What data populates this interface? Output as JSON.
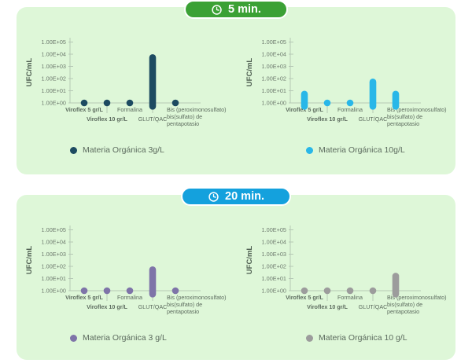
{
  "panels": [
    {
      "badge": {
        "label": "5 min.",
        "color": "#3ba135",
        "icon": "clock-icon"
      }
    },
    {
      "badge": {
        "label": "20 min.",
        "color": "#14a1dd",
        "icon": "clock-icon"
      }
    }
  ],
  "style": {
    "panel_background": "#def7d8",
    "axis_color": "#b5c8b5",
    "tick_text_color": "#6d7a6e",
    "category_text_color": "#5c6b5e",
    "ylabel_color": "#4e5e51"
  },
  "chart_data": [
    {
      "type": "bar",
      "panel": "5 min.",
      "series": "Materia Orgánica 3g/L",
      "color": "#1d4b61",
      "ylabel": "UFC/mL",
      "yscale": "log10",
      "ylim": [
        1,
        100000
      ],
      "ytick_labels": [
        "1.00E+00",
        "1.00E+01",
        "1.00E+02",
        "1.00E+03",
        "1.00E+04",
        "1.00E+05"
      ],
      "categories": [
        "Viroflex 5 gr/L",
        "Viroflex 10 gr/L",
        "Formalina",
        "GLUT/QAC",
        "Bis (peroximonosulfato) bis(sulfato) de pentapotasio"
      ],
      "categories_display": [
        [
          "Viroflex 5 gr/L"
        ],
        [
          "Viroflex 10 gr/L"
        ],
        [
          "Formalina"
        ],
        [
          "GLUT/QAC"
        ],
        [
          "Bis (peroximonosulfato)",
          "bis(sulfato) de",
          "pentapotasio"
        ]
      ],
      "categories_bold": [
        true,
        true,
        false,
        false,
        false
      ],
      "categories_row": [
        1,
        2,
        1,
        2,
        1
      ],
      "values": [
        1,
        1,
        1,
        10000,
        1
      ],
      "values_scientific": [
        "1.00E+00",
        "1.00E+00",
        "1.00E+00",
        "1.00E+04",
        "1.00E+00"
      ]
    },
    {
      "type": "bar",
      "panel": "5 min.",
      "series": "Materia Orgánica 10g/L",
      "color": "#29b7e8",
      "ylabel": "UFC/mL",
      "yscale": "log10",
      "ylim": [
        1,
        100000
      ],
      "ytick_labels": [
        "1.00E+00",
        "1.00E+01",
        "1.00E+02",
        "1.00E+03",
        "1.00E+04",
        "1.00E+05"
      ],
      "categories": [
        "Viroflex 5 gr/L",
        "Viroflex 10 gr/L",
        "Formalina",
        "GLUT/QAC",
        "Bis (peroximonosulfato) bis(sulfato) de pentapotasio"
      ],
      "categories_display": [
        [
          "Viroflex 5 gr/L"
        ],
        [
          "Viroflex 10 gr/L"
        ],
        [
          "Formalina"
        ],
        [
          "GLUT/QAC"
        ],
        [
          "Bis (peroximonosulfato)",
          "bis(sulfato) de",
          "pentapotasio"
        ]
      ],
      "categories_bold": [
        true,
        true,
        false,
        false,
        false
      ],
      "categories_row": [
        1,
        2,
        1,
        2,
        1
      ],
      "values": [
        10,
        1,
        1,
        100,
        10
      ],
      "values_scientific": [
        "1.00E+01",
        "1.00E+00",
        "1.00E+00",
        "1.00E+02",
        "1.00E+01"
      ]
    },
    {
      "type": "bar",
      "panel": "20 min.",
      "series": "Materia Orgánica 3 g/L",
      "color": "#7e74a8",
      "ylabel": "UFC/mL",
      "yscale": "log10",
      "ylim": [
        1,
        100000
      ],
      "ytick_labels": [
        "1.00E+00",
        "1.00E+01",
        "1.00E+02",
        "1.00E+03",
        "1.00E+04",
        "1.00E+05"
      ],
      "categories": [
        "Viroflex 5 gr/L",
        "Viroflex 10 gr/L",
        "Formalina",
        "GLUT/QAC",
        "Bis (peroximonosulfato) bis(sulfato) de pentapotasio"
      ],
      "categories_display": [
        [
          "Viroflex 5 gr/L"
        ],
        [
          "Viroflex 10 gr/L"
        ],
        [
          "Formalina"
        ],
        [
          "GLUT/QAC"
        ],
        [
          "Bis (peroximonosulfato)",
          "bis(sulfato) de",
          "pentapotasio"
        ]
      ],
      "categories_bold": [
        true,
        true,
        false,
        false,
        false
      ],
      "categories_row": [
        1,
        2,
        1,
        2,
        1
      ],
      "values": [
        1,
        1,
        1,
        100,
        1
      ],
      "values_scientific": [
        "1.00E+00",
        "1.00E+00",
        "1.00E+00",
        "1.00E+02",
        "1.00E+00"
      ]
    },
    {
      "type": "bar",
      "panel": "20 min.",
      "series": "Materia Orgánica 10 g/L",
      "color": "#9c9c9c",
      "ylabel": "UFC/mL",
      "yscale": "log10",
      "ylim": [
        1,
        100000
      ],
      "ytick_labels": [
        "1.00E+00",
        "1.00E+01",
        "1.00E+02",
        "1.00E+03",
        "1.00E+04",
        "1.00E+05"
      ],
      "categories": [
        "Viroflex 5 gr/L",
        "Viroflex 10 gr/L",
        "Formalina",
        "GLUT/QAC",
        "Bis (peroximonosulfato) bis(sulfato) de pentapotasio"
      ],
      "categories_display": [
        [
          "Viroflex 5 gr/L"
        ],
        [
          "Viroflex 10 gr/L"
        ],
        [
          "Formalina"
        ],
        [
          "GLUT/QAC"
        ],
        [
          "Bis (peroximonosulfato)",
          "bis(sulfato) de",
          "pentapotasio"
        ]
      ],
      "categories_bold": [
        true,
        true,
        false,
        false,
        false
      ],
      "categories_row": [
        1,
        2,
        1,
        2,
        1
      ],
      "values": [
        1,
        1,
        1,
        1,
        30
      ],
      "values_scientific": [
        "1.00E+00",
        "1.00E+00",
        "1.00E+00",
        "1.00E+00",
        "3.00E+01"
      ]
    }
  ]
}
